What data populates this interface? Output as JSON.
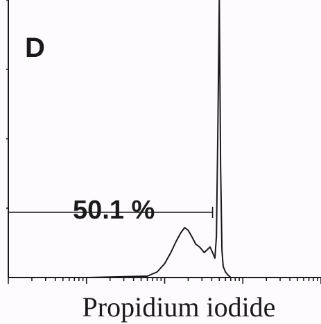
{
  "chart_data": {
    "type": "line",
    "panel_label": "D",
    "xlabel": "Propidium iodide",
    "ylabel": "",
    "x_scale": "log",
    "xlim": [
      1,
      10000
    ],
    "ylim": [
      0,
      100
    ],
    "grid": false,
    "gate": {
      "label": "50.1 %",
      "x_start": 1,
      "x_end": 410,
      "y_level": 20
    },
    "series": [
      {
        "values_x": [
          1,
          10,
          60,
          80,
          100,
          120,
          140,
          160,
          180,
          200,
          220,
          250,
          280,
          300,
          320,
          350,
          380,
          410,
          440,
          460,
          480,
          500,
          520,
          540,
          560,
          600,
          640,
          700,
          800,
          10000
        ],
        "values_y": [
          0,
          0,
          0.5,
          2,
          5,
          9,
          13,
          16,
          18,
          17,
          15,
          12,
          11,
          10,
          9,
          10,
          11,
          9,
          7,
          15,
          55,
          100,
          40,
          10,
          4,
          2,
          1,
          0,
          0,
          0
        ]
      }
    ]
  }
}
